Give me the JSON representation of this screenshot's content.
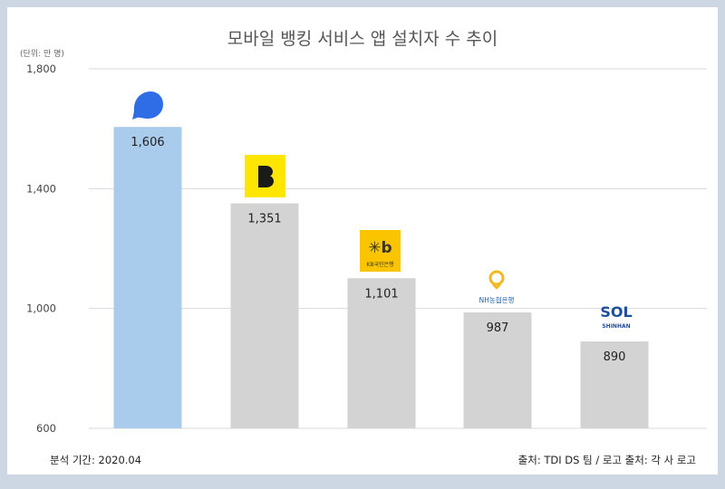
{
  "title": "모바일 뱅킹 서비스 앱 설치자 수 추이",
  "unit_label": "(단위: 만 명)",
  "footer": {
    "period": "분석 기간: 2020.04",
    "source": "출처: TDI DS 팀 / 로고 출처: 각 사 로고"
  },
  "colors": {
    "highlight_bar": "#a9cbec",
    "bar": "#d3d3d3",
    "grid": "#d9d9d9",
    "background": "#cdd6e3"
  },
  "logos": {
    "kb_caption": "KB국민은행",
    "nh_caption": "NH농협은행",
    "shinhan_caption": "SHINHAN"
  },
  "chart_data": {
    "type": "bar",
    "categories": [
      "toss",
      "kakaobank",
      "kb",
      "nh",
      "shinhan"
    ],
    "values": [
      1606,
      1351,
      1101,
      987,
      890
    ],
    "value_labels": [
      "1,606",
      "1,351",
      "1,101",
      "987",
      "890"
    ],
    "yticks": [
      600,
      1000,
      1400,
      1800
    ],
    "ytick_labels": [
      "600",
      "1,000",
      "1,400",
      "1,800"
    ],
    "ylim": [
      600,
      1800
    ],
    "grid": true,
    "highlight_index": 0
  }
}
